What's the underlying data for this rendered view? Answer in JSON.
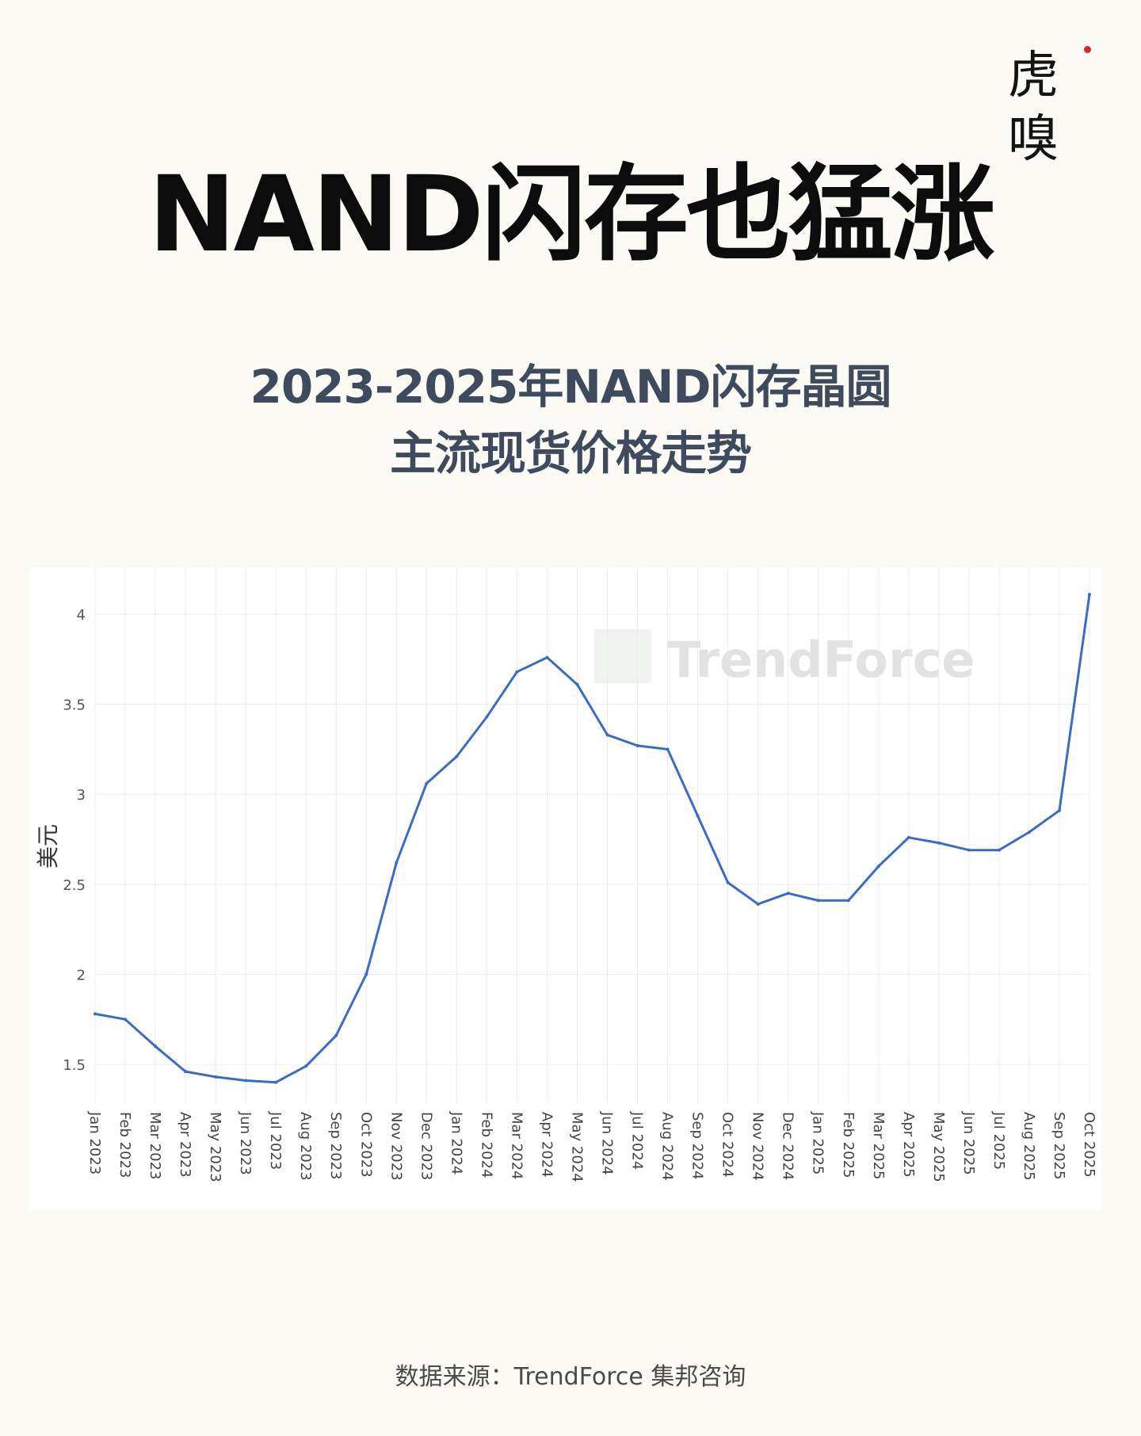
{
  "brand": {
    "logo_text": "虎嗅"
  },
  "headline": "NAND闪存也猛涨",
  "subtitle": {
    "line1": "2023-2025年NAND闪存晶圆",
    "line2": "主流现货价格走势"
  },
  "source": "数据来源：TrendForce 集邦咨询",
  "colors": {
    "background": "#fcfaf5",
    "line": "#3b6cc4",
    "grid": "#ececec",
    "headline": "#0c0c0c",
    "subtitle": "#3f4b5c"
  },
  "chart_data": {
    "type": "line",
    "watermark": "TrendForce",
    "ylabel": "美元",
    "ylim": [
      1.28,
      4.26
    ],
    "y_ticks": [
      1.5,
      2,
      2.5,
      3,
      3.5,
      4
    ],
    "y_tick_labels": [
      "1.5",
      "2",
      "2.5",
      "3",
      "3.5",
      "4"
    ],
    "grid": true,
    "categories": [
      "Jan 2023",
      "Feb 2023",
      "Mar 2023",
      "Apr 2023",
      "May 2023",
      "Jun 2023",
      "Jul 2023",
      "Aug 2023",
      "Sep 2023",
      "Oct 2023",
      "Nov 2023",
      "Dec 2023",
      "Jan 2024",
      "Feb 2024",
      "Mar 2024",
      "Apr 2024",
      "May 2024",
      "Jun 2024",
      "Jul 2024",
      "Aug 2024",
      "Sep 2024",
      "Oct 2024",
      "Nov 2024",
      "Dec 2024",
      "Jan 2025",
      "Feb 2025",
      "Mar 2025",
      "Apr 2025",
      "May 2025",
      "Jun 2025",
      "Jul 2025",
      "Aug 2025",
      "Sep 2025",
      "Oct 2025"
    ],
    "values": [
      1.78,
      1.75,
      1.6,
      1.46,
      1.43,
      1.41,
      1.4,
      1.49,
      1.66,
      2.0,
      2.62,
      3.06,
      3.21,
      3.43,
      3.68,
      3.76,
      3.61,
      3.33,
      3.27,
      3.25,
      2.88,
      2.51,
      2.39,
      2.45,
      2.41,
      2.41,
      2.6,
      2.76,
      2.73,
      2.69,
      2.69,
      2.79,
      2.91,
      4.11
    ]
  }
}
